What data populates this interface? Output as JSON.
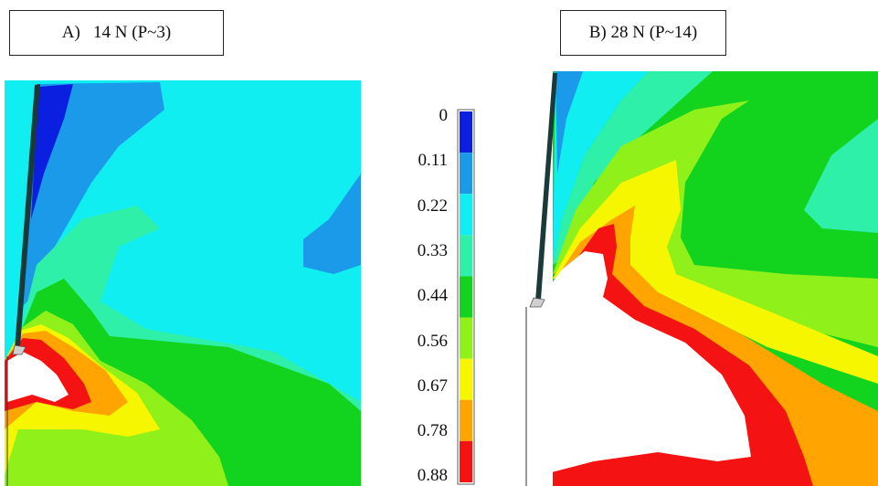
{
  "panels": {
    "a": {
      "label": "A)   14 N (P~3)"
    },
    "b": {
      "label": "B) 28 N (P~14)"
    }
  },
  "scale": {
    "ticks": [
      "0",
      "0.11",
      "0.22",
      "0.33",
      "0.44",
      "0.56",
      "0.67",
      "0.78",
      "0.88"
    ],
    "colors": [
      "#0a1fe0",
      "#1a9ae8",
      "#10eef2",
      "#2ff0a8",
      "#12d41e",
      "#8ff01a",
      "#f6f600",
      "#ffa400",
      "#f41212"
    ]
  }
}
